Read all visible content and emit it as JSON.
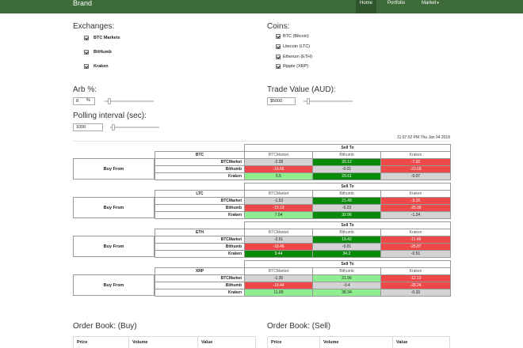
{
  "navbar": {
    "brand": "Brand",
    "items": [
      {
        "label": "Home",
        "active": true
      },
      {
        "label": "Portfolio",
        "active": false
      },
      {
        "label": "Market",
        "active": false,
        "dropdown": true
      }
    ]
  },
  "settings": {
    "exchanges_title": "Exchanges:",
    "exchanges": [
      {
        "label": "BTC Markets",
        "checked": true
      },
      {
        "label": "BitHumb",
        "checked": true
      },
      {
        "label": "Kraken",
        "checked": true
      }
    ],
    "coins_title": "Coins:",
    "coins": [
      {
        "label": "BTC (Bitcoin)",
        "checked": true
      },
      {
        "label": "Litecoin (LTC)",
        "checked": true
      },
      {
        "label": "Etherum (ETH)",
        "checked": true
      },
      {
        "label": "Ripple (XRP)",
        "checked": true
      }
    ],
    "arb_title": "Arb %:",
    "arb_value": "8",
    "arb_unit": "%",
    "trade_title": "Trade Value (AUD):",
    "trade_value": "$5000",
    "polling_title": "Polling interval (sec):",
    "polling_value": "1000"
  },
  "timestamp": "11:07:02 PM Thu Jan 04 2018",
  "arbitrage": {
    "buy_from_label": "Buy From",
    "sell_to_label": "Sell To",
    "columns": [
      "BTCMarket",
      "Bithumb",
      "Kraken"
    ],
    "tables": [
      {
        "coin": "BTC",
        "rows": [
          {
            "name": "BTCMarket",
            "cells": [
              {
                "v": "-2.28",
                "c": "n"
              },
              {
                "v": "20.12",
                "c": "g-dark"
              },
              {
                "v": "-7.92",
                "c": "r"
              }
            ]
          },
          {
            "name": "Bithumb",
            "cells": [
              {
                "v": "-16.66",
                "c": "r"
              },
              {
                "v": "-0.01",
                "c": "n"
              },
              {
                "v": "-23.03",
                "c": "r"
              }
            ]
          },
          {
            "name": "Kraken",
            "cells": [
              {
                "v": "5.5",
                "c": "g-light"
              },
              {
                "v": "29.61",
                "c": "g-dark"
              },
              {
                "v": "-0.07",
                "c": "n"
              }
            ]
          }
        ]
      },
      {
        "coin": "LTC",
        "rows": [
          {
            "name": "BTCMarket",
            "cells": [
              {
                "v": "-1.53",
                "c": "n"
              },
              {
                "v": "21.48",
                "c": "g-dark"
              },
              {
                "v": "-9.15",
                "c": "r"
              }
            ]
          },
          {
            "name": "Bithumb",
            "cells": [
              {
                "v": "-15.13",
                "c": "r"
              },
              {
                "v": "-0.23",
                "c": "n"
              },
              {
                "v": "-25.39",
                "c": "r"
              }
            ]
          },
          {
            "name": "Kraken",
            "cells": [
              {
                "v": "7.04",
                "c": "g-light"
              },
              {
                "v": "32.06",
                "c": "g-dark"
              },
              {
                "v": "-1.24",
                "c": "n"
              }
            ]
          }
        ]
      },
      {
        "coin": "ETH",
        "rows": [
          {
            "name": "BTCMarket",
            "cells": [
              {
                "v": "-2.61",
                "c": "n"
              },
              {
                "v": "19.42",
                "c": "g-dark"
              },
              {
                "v": "-11.46",
                "c": "r"
              }
            ]
          },
          {
            "name": "Bithumb",
            "cells": [
              {
                "v": "-18.46",
                "c": "r"
              },
              {
                "v": "-0.01",
                "c": "n"
              },
              {
                "v": "-25.87",
                "c": "r"
              }
            ]
          },
          {
            "name": "Kraken",
            "cells": [
              {
                "v": "9.44",
                "c": "g-dark"
              },
              {
                "v": "34.2",
                "c": "g-dark"
              },
              {
                "v": "-0.51",
                "c": "n"
              }
            ]
          }
        ]
      },
      {
        "coin": "XRP",
        "rows": [
          {
            "name": "BTCMarket",
            "cells": [
              {
                "v": "-1.35",
                "c": "n"
              },
              {
                "v": "21.96",
                "c": "g-light"
              },
              {
                "v": "-12.13",
                "c": "r"
              }
            ]
          },
          {
            "name": "Bithumb",
            "cells": [
              {
                "v": "-19.44",
                "c": "r"
              },
              {
                "v": "-0.4",
                "c": "n"
              },
              {
                "v": "-28.24",
                "c": "r"
              }
            ]
          },
          {
            "name": "Kraken",
            "cells": [
              {
                "v": "11.89",
                "c": "g-light"
              },
              {
                "v": "38.34",
                "c": "g-light"
              },
              {
                "v": "-0.33",
                "c": "n"
              }
            ]
          }
        ]
      }
    ]
  },
  "orderbook": {
    "buy_title": "Order Book: (Buy)",
    "sell_title": "Order Book: (Sell)",
    "columns": [
      "Price",
      "Volume",
      "Value"
    ]
  },
  "colors": {
    "navbar": "#3d6b3a",
    "profit_strong": "#0a8a0a",
    "profit_light": "#90ee90",
    "loss": "#ef4848",
    "neutral": "#d3d3d3"
  }
}
